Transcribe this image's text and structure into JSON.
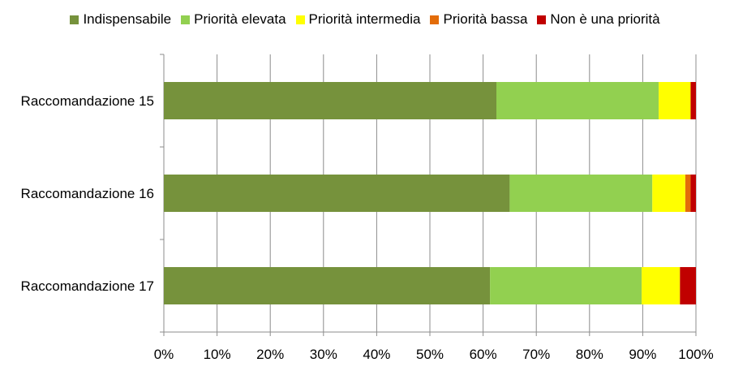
{
  "chart_data": {
    "type": "bar",
    "orientation": "horizontal",
    "stacked": true,
    "percent": true,
    "categories": [
      "Raccomandazione 15",
      "Raccomandazione 16",
      "Raccomandazione 17"
    ],
    "series": [
      {
        "name": "Indispensabile",
        "color": "#76923C",
        "values": [
          62.5,
          65.0,
          61.3
        ]
      },
      {
        "name": "Priorità elevata",
        "color": "#92D050",
        "values": [
          30.5,
          26.8,
          28.5
        ]
      },
      {
        "name": "Priorità intermedia",
        "color": "#FFFF00",
        "values": [
          6.0,
          6.2,
          7.2
        ]
      },
      {
        "name": "Priorità bassa",
        "color": "#E36C09",
        "values": [
          0.0,
          1.0,
          0.0
        ]
      },
      {
        "name": "Non è una priorità",
        "color": "#C00000",
        "values": [
          1.0,
          1.0,
          3.0
        ]
      }
    ],
    "xlim": [
      0,
      100
    ],
    "xticks": [
      "0%",
      "10%",
      "20%",
      "30%",
      "40%",
      "50%",
      "60%",
      "70%",
      "80%",
      "90%",
      "100%"
    ],
    "grid": true,
    "legend_position": "top"
  }
}
